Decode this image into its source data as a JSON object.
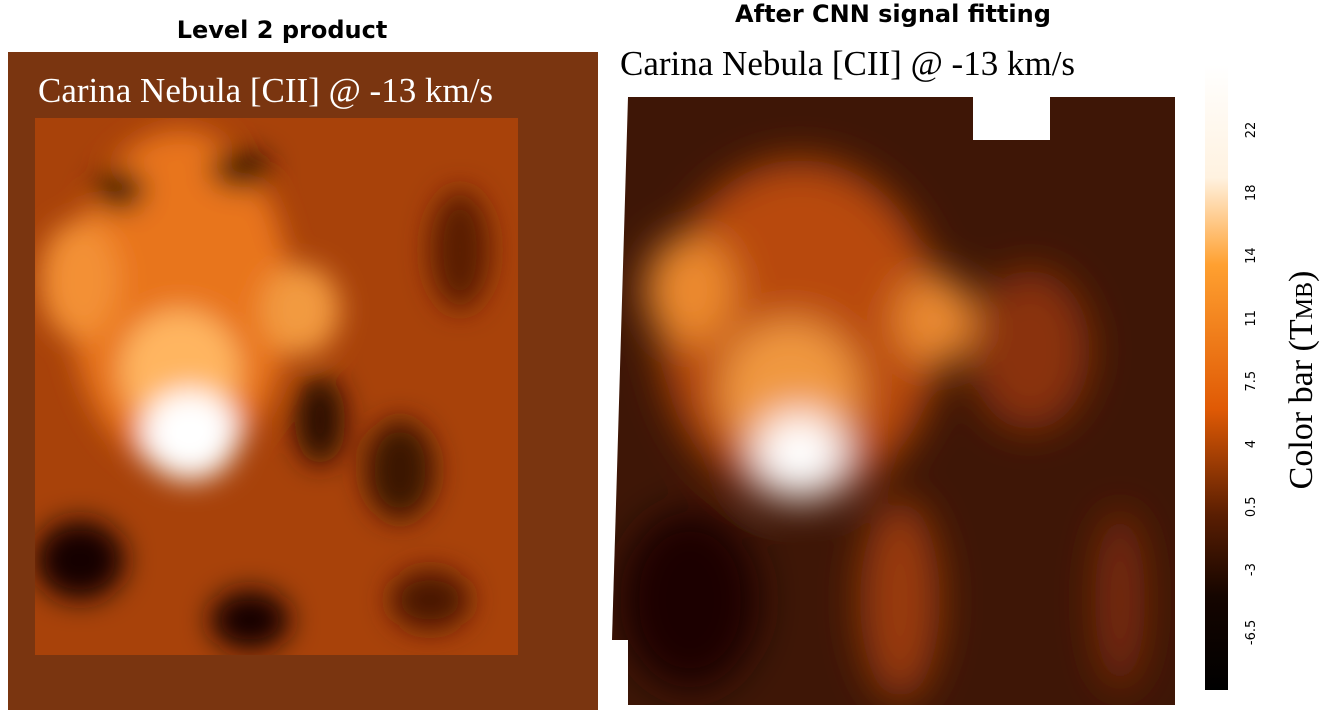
{
  "panels": [
    {
      "title": "Level 2 product",
      "image_label": "Carina Nebula [CII] @ -13 km/s"
    },
    {
      "title": "After CNN signal fitting",
      "image_label": "Carina Nebula [CII] @ -13 km/s"
    }
  ],
  "colorbar": {
    "label_prefix": "Color bar (T",
    "label_subscript": "MB",
    "label_suffix": ")",
    "ticks": [
      22,
      18,
      14,
      11,
      7.5,
      4,
      0.5,
      -3,
      -6.5
    ]
  }
}
